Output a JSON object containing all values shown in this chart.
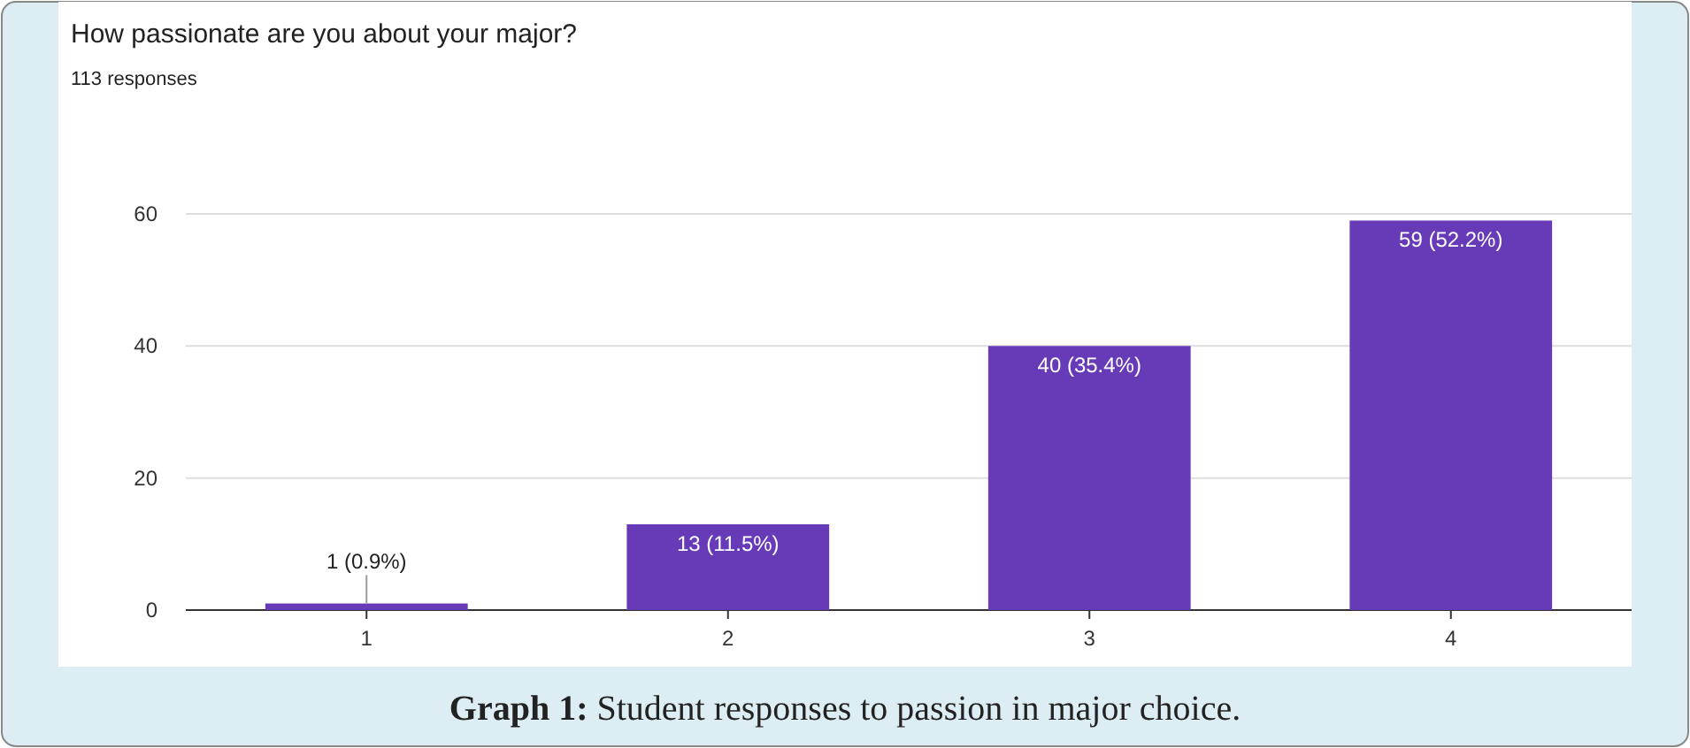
{
  "chart_data": {
    "type": "bar",
    "title": "How passionate are you about your major?",
    "subtitle": "113 responses",
    "categories": [
      "1",
      "2",
      "3",
      "4"
    ],
    "values": [
      1,
      13,
      40,
      59
    ],
    "color": "#673ab7",
    "value_labels": [
      "1 (0.9%)",
      "13 (11.5%)",
      "40 (35.4%)",
      "59 (52.2%)"
    ],
    "ylim": [
      0,
      60
    ],
    "yticks": [
      0,
      20,
      40,
      60
    ],
    "grid": "y",
    "annotations": [
      "Graph 1: Student responses to passion in major choice."
    ]
  }
}
